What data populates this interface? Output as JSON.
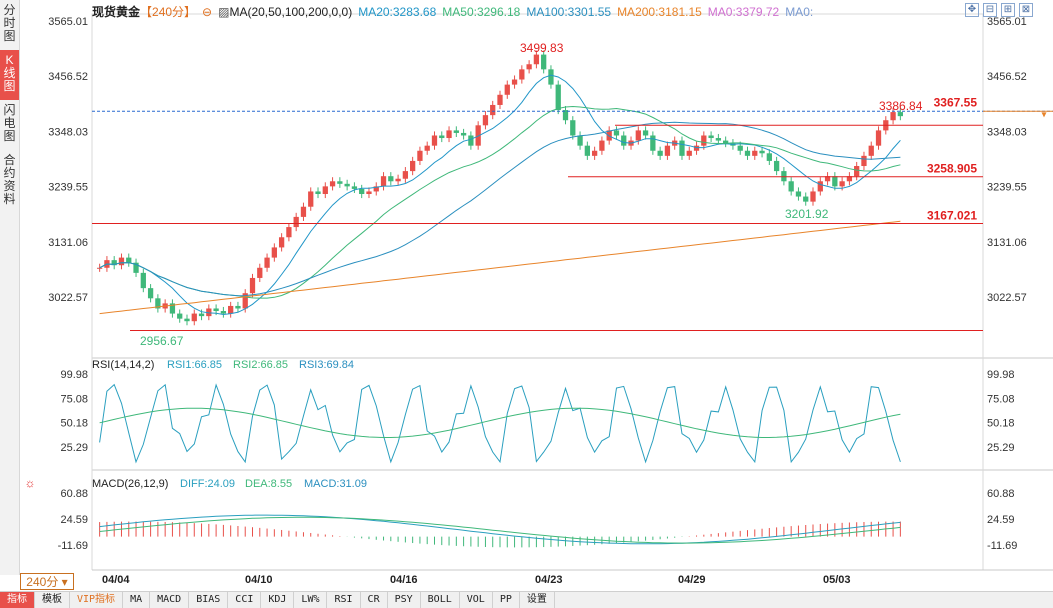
{
  "sidebar": {
    "tabs": [
      {
        "label": "分时图",
        "active": false
      },
      {
        "label": "K线图",
        "active": true
      },
      {
        "label": "闪电图",
        "active": false
      },
      {
        "label": "合约资料",
        "active": false
      }
    ]
  },
  "header": {
    "title": "现货黄金",
    "period": "【240分】",
    "ma_label": "MA(20,50,100,200,0,0)",
    "ma20": "MA20:3283.68",
    "ma50": "MA50:3296.18",
    "ma100": "MA100:3301.55",
    "ma200": "MA200:3181.15",
    "ma0a": "MA0:3379.72",
    "ma0b": "MA0:"
  },
  "rsi_header": {
    "label": "RSI(14,14,2)",
    "rsi1": "RSI1:66.85",
    "rsi2": "RSI2:66.85",
    "rsi3": "RSI3:69.84"
  },
  "macd_header": {
    "label": "MACD(26,12,9)",
    "diff": "DIFF:24.09",
    "dea": "DEA:8.55",
    "macd": "MACD:31.09"
  },
  "period_badge": "240分",
  "bottom_bar": [
    {
      "label": "指标",
      "active": true
    },
    {
      "label": "模板"
    },
    {
      "label": "VIP指标",
      "vip": true
    },
    {
      "label": "MA"
    },
    {
      "label": "MACD"
    },
    {
      "label": "BIAS"
    },
    {
      "label": "CCI"
    },
    {
      "label": "KDJ"
    },
    {
      "label": "LW%"
    },
    {
      "label": "RSI"
    },
    {
      "label": "CR"
    },
    {
      "label": "PSY"
    },
    {
      "label": "BOLL"
    },
    {
      "label": "VOL"
    },
    {
      "label": "PP"
    },
    {
      "label": "设置"
    }
  ],
  "colors": {
    "up": "#e8504a",
    "down": "#3fb87a",
    "ma20": "#2196c8",
    "ma50": "#3fb87a",
    "ma100": "#2a8fbf",
    "ma200": "#e8842a",
    "level": "#e02020",
    "price_line": "#2a6ad0",
    "ma0": "#d070d0",
    "ma0b": "#7a9ad0"
  },
  "chart_data": {
    "type": "candlestick",
    "price_axis": {
      "ticks": [
        "3565.01",
        "3456.52",
        "3348.03",
        "3239.55",
        "3131.06",
        "3022.57"
      ]
    },
    "rsi_axis": {
      "ticks": [
        "99.98",
        "75.08",
        "50.18",
        "25.29"
      ]
    },
    "macd_axis": {
      "ticks": [
        "60.88",
        "24.59",
        "-11.69"
      ]
    },
    "x_labels": [
      "04/04",
      "04/10",
      "04/16",
      "04/23",
      "04/29",
      "05/03"
    ],
    "annotations": {
      "high": "3499.83",
      "low": "2956.67",
      "local_low": "3201.92",
      "last_high": "3386.84",
      "current_price": "3367.55"
    },
    "levels": [
      "3258.905",
      "3167.021"
    ]
  }
}
